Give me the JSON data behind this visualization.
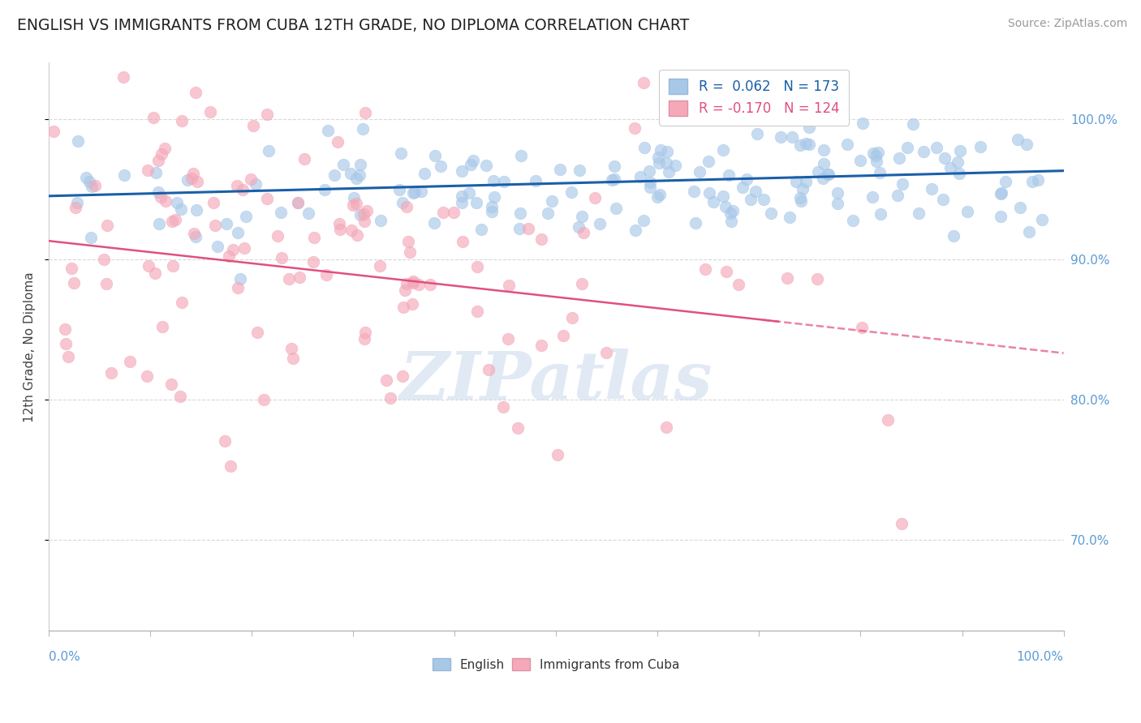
{
  "title": "ENGLISH VS IMMIGRANTS FROM CUBA 12TH GRADE, NO DIPLOMA CORRELATION CHART",
  "source": "Source: ZipAtlas.com",
  "ylabel": "12th Grade, No Diploma",
  "legend_english": "English",
  "legend_cuba": "Immigrants from Cuba",
  "R_english": 0.062,
  "N_english": 173,
  "R_cuba": -0.17,
  "N_cuba": 124,
  "color_english": "#a8c8e8",
  "color_cuba": "#f4a8b8",
  "color_english_line": "#1a5fa8",
  "color_cuba_line": "#e05080",
  "color_title": "#222222",
  "color_axis_label": "#5b9bd5",
  "color_source": "#999999",
  "xlim": [
    0.0,
    1.0
  ],
  "ylim": [
    0.635,
    1.04
  ],
  "english_intercept": 0.945,
  "english_slope": 0.018,
  "cuba_intercept": 0.913,
  "cuba_slope": -0.08,
  "watermark_color": "#c8d8ec",
  "watermark_alpha": 0.55,
  "grid_color": "#d8d8d8",
  "yticks": [
    0.7,
    0.8,
    0.9,
    1.0
  ]
}
